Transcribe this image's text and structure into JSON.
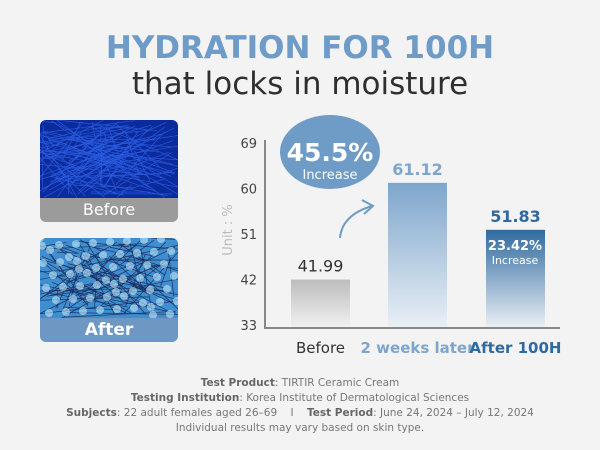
{
  "header": {
    "title": "HYDRATION FOR 100H",
    "subtitle": "that locks in moisture"
  },
  "photos": {
    "before_label": "Before",
    "after_label": "After"
  },
  "chart_data": {
    "type": "bar",
    "categories": [
      "Before",
      "2 weeks later",
      "After 100H"
    ],
    "values": [
      41.99,
      61.12,
      51.83
    ],
    "value_labels": [
      "41.99",
      "61.12",
      "51.83"
    ],
    "ylabel": "Unit : %",
    "ylim": [
      33,
      69
    ],
    "yticks": [
      "69",
      "60",
      "51",
      "42",
      "33"
    ],
    "colors": [
      "#c4c4c4",
      "#7ea6cc",
      "#2f6a9f"
    ],
    "callouts": [
      {
        "value": "45.5%",
        "text": "Increase"
      },
      {
        "value": "23.42%",
        "text": "Increase"
      }
    ]
  },
  "footer": {
    "product_label": "Test Product",
    "product": ": TIRTIR Ceramic Cream",
    "institution_label": "Testing Institution",
    "institution": ": Korea Institute of Dermatological Sciences",
    "subjects_label": "Subjects",
    "subjects": ": 22 adult females aged 26–69",
    "separator": "I",
    "period_label": "Test Period",
    "period": ": June 24, 2024 – July 12, 2024",
    "disclaimer": "Individual results may vary based on skin type."
  }
}
